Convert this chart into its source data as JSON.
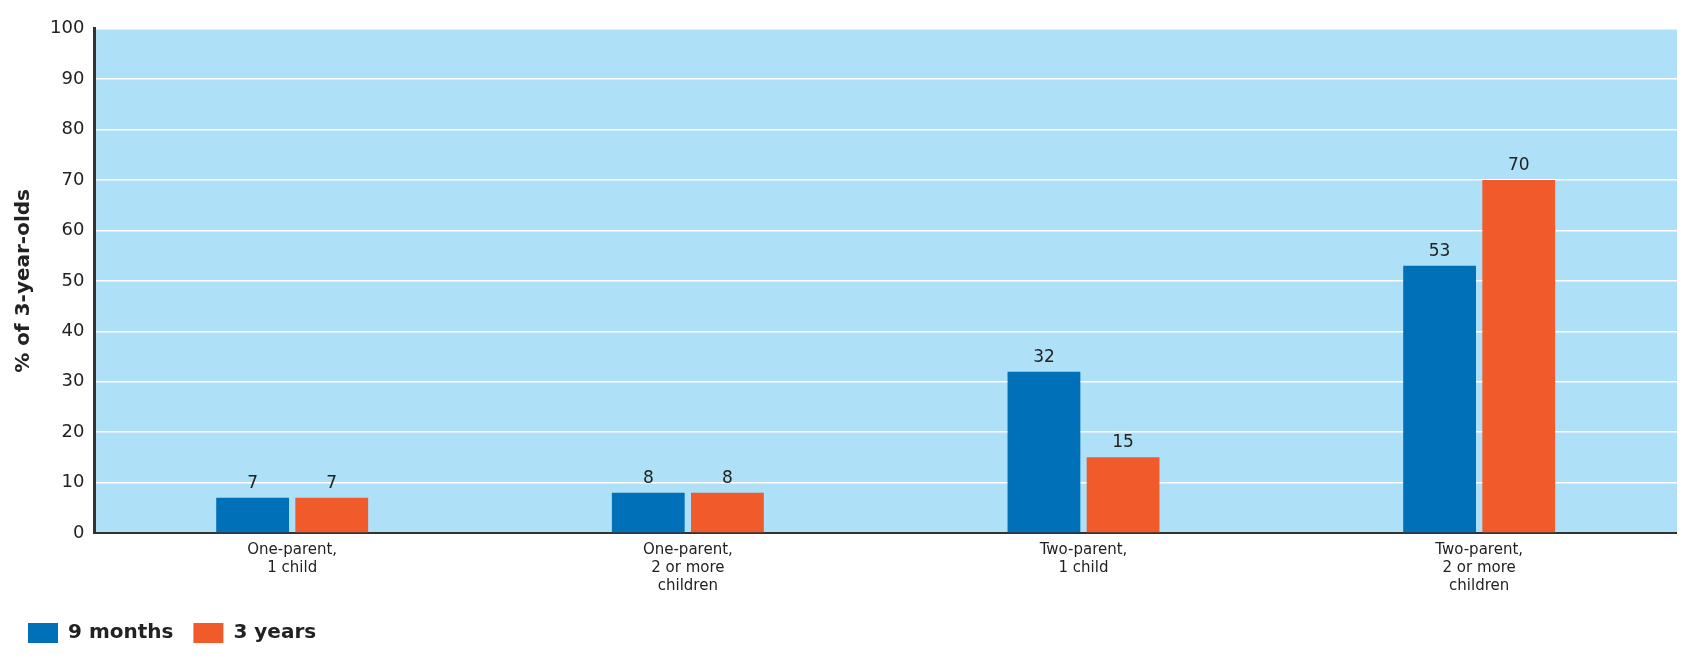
{
  "chart_data": {
    "type": "bar",
    "ylabel": "% of 3-year-olds",
    "categories": [
      "One-parent,\n1 child",
      "One-parent,\n2 or more\nchildren",
      "Two-parent,\n1 child",
      "Two-parent,\n2 or more\nchildren"
    ],
    "series": [
      {
        "name": "9 months",
        "color": "#0070b8",
        "values": [
          7,
          8,
          32,
          53
        ]
      },
      {
        "name": "3 years",
        "color": "#f15a2b",
        "values": [
          7,
          8,
          15,
          70
        ]
      }
    ],
    "ylim": [
      0,
      100
    ],
    "yticks": [
      0,
      10,
      20,
      30,
      40,
      50,
      60,
      70,
      80,
      90,
      100
    ],
    "grid": "y",
    "legend": "bottom left",
    "data_labels": true
  }
}
